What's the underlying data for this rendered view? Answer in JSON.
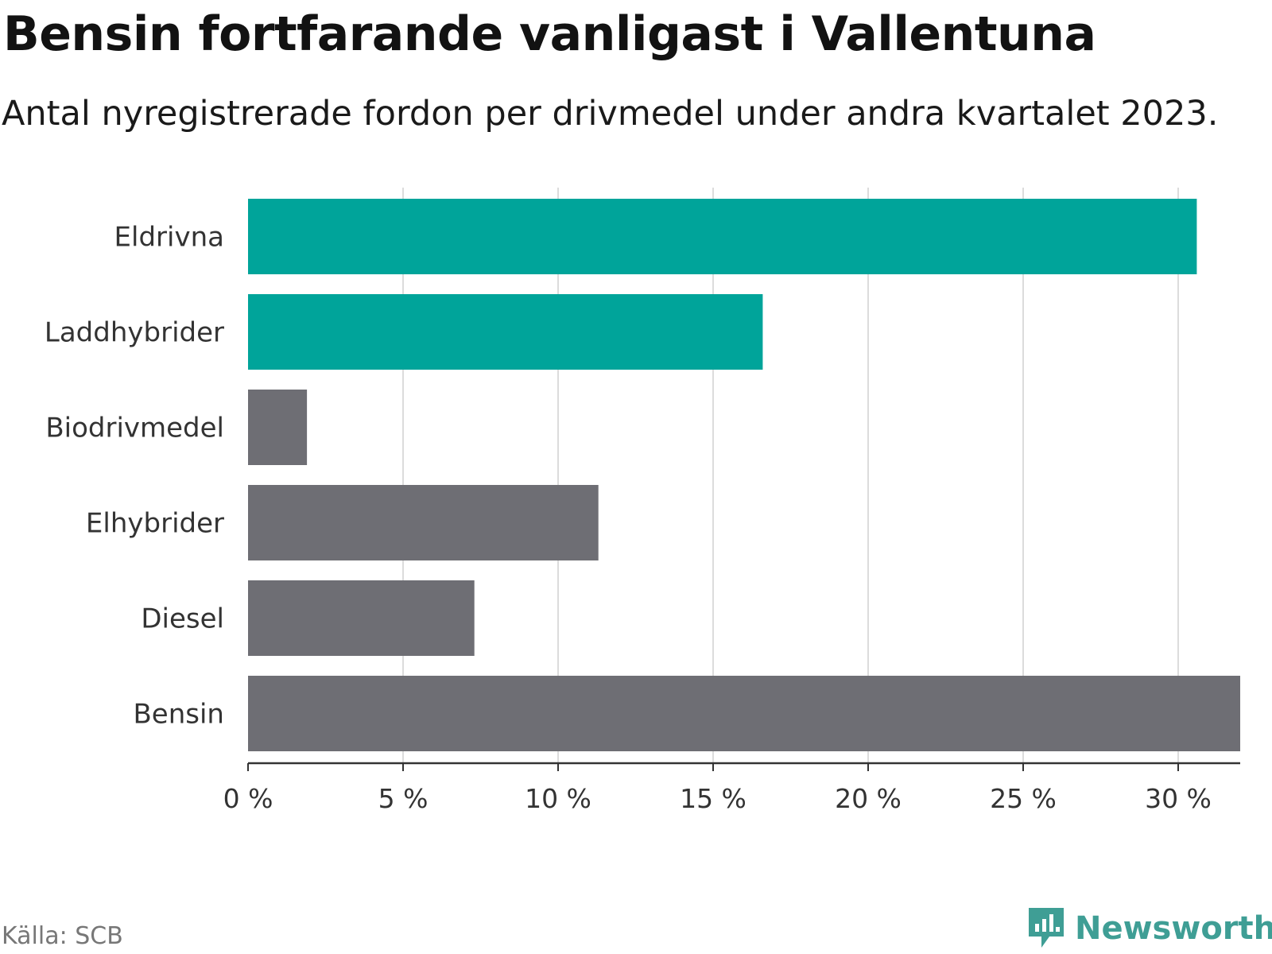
{
  "title": "Bensin fortfarande vanligast i Vallentuna",
  "subtitle": "Antal nyregistrerade fordon per drivmedel under andra kvartalet 2023.",
  "source": "Källa: SCB",
  "brand": {
    "name": "Newsworthy",
    "icon": "newsworthy-logo-icon",
    "color": "#3f9e95"
  },
  "colors": {
    "highlight": "#00a49a",
    "default": "#6e6e74",
    "grid": "#dcdcdc",
    "axis": "#333333"
  },
  "chart_data": {
    "type": "bar",
    "orientation": "horizontal",
    "title": "Bensin fortfarande vanligast i Vallentuna",
    "xlabel": "",
    "ylabel": "",
    "xlim": [
      0,
      32
    ],
    "ticks": [
      0,
      5,
      10,
      15,
      20,
      25,
      30
    ],
    "tick_labels": [
      "0 %",
      "5 %",
      "10 %",
      "15 %",
      "20 %",
      "25 %",
      "30 %"
    ],
    "categories": [
      "Eldrivna",
      "Laddhybrider",
      "Biodrivmedel",
      "Elhybrider",
      "Diesel",
      "Bensin"
    ],
    "values": [
      30.6,
      16.6,
      1.9,
      11.3,
      7.3,
      32.0
    ],
    "highlighted": [
      true,
      true,
      false,
      false,
      false,
      false
    ],
    "grid": true
  }
}
